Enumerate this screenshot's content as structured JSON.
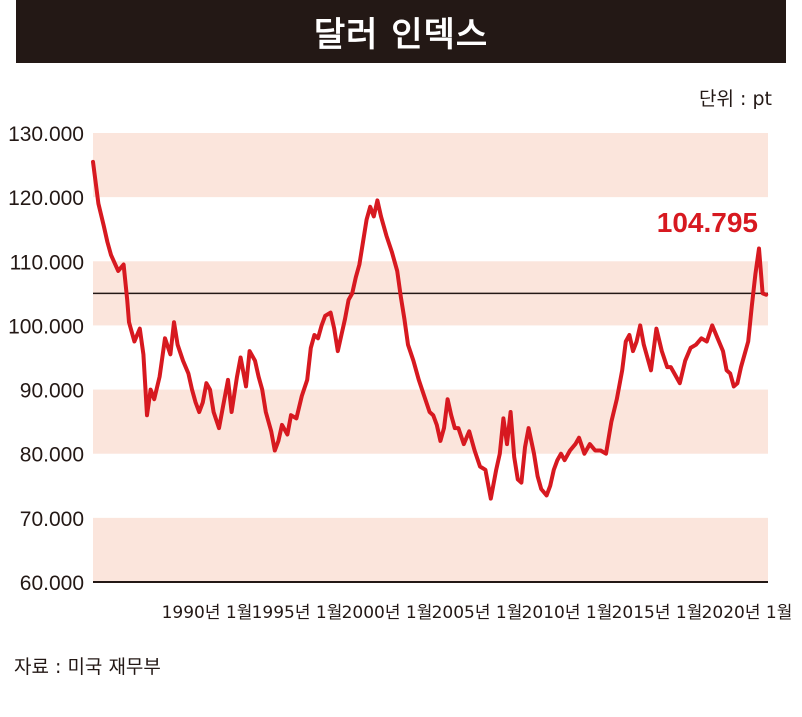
{
  "header": {
    "title": "달러 인덱스"
  },
  "unit_label": "단위 : pt",
  "source_label": "자료 : 미국 재무부",
  "colors": {
    "band": "#fbe5dc",
    "line": "#d71920",
    "axis": "#231815",
    "title_bg": "#231815"
  },
  "chart_data": {
    "type": "line",
    "title": "달러 인덱스",
    "ylim": [
      60,
      130
    ],
    "y_ticks": [
      "130.000",
      "120.000",
      "110.000",
      "100.000",
      "90.000",
      "80.000",
      "70.000",
      "60.000"
    ],
    "y_tick_values": [
      130,
      120,
      110,
      100,
      90,
      80,
      70,
      60
    ],
    "x_range": [
      1985.0,
      2022.5
    ],
    "x_ticks": [
      {
        "x": 1990,
        "label": "1990년 1월"
      },
      {
        "x": 1995,
        "label": "1995년 1월"
      },
      {
        "x": 2000,
        "label": "2000년 1월"
      },
      {
        "x": 2005,
        "label": "2005년 1월"
      },
      {
        "x": 2010,
        "label": "2010년 1월"
      },
      {
        "x": 2015,
        "label": "2015년 1월"
      },
      {
        "x": 2020,
        "label": "2020년 1월"
      }
    ],
    "reference_line": 105,
    "annotation": {
      "label": "104.795",
      "x": 2022.4,
      "y": 104.795
    },
    "grid": "alternating horizontal bands",
    "series": [
      {
        "x": [
          1985.0,
          1985.3,
          1985.6,
          1985.8,
          1986.0,
          1986.4,
          1986.7,
          1986.9,
          1987.0,
          1987.3,
          1987.6,
          1987.8,
          1988.0,
          1988.2,
          1988.4,
          1988.7,
          1989.0,
          1989.3,
          1989.5,
          1989.7,
          1990.0,
          1990.3,
          1990.5,
          1990.7,
          1990.9,
          1991.1,
          1991.3,
          1991.5,
          1991.7,
          1992.0,
          1992.2,
          1992.5,
          1992.7,
          1993.0,
          1993.2,
          1993.5,
          1993.7,
          1994.0,
          1994.2,
          1994.4,
          1994.6,
          1994.9,
          1995.1,
          1995.3,
          1995.5,
          1995.8,
          1996.0,
          1996.3,
          1996.6,
          1996.9,
          1997.1,
          1997.3,
          1997.5,
          1997.7,
          1997.9,
          1998.2,
          1998.4,
          1998.6,
          1998.8,
          1999.0,
          1999.2,
          1999.4,
          1999.6,
          1999.8,
          2000.0,
          2000.2,
          2000.4,
          2000.6,
          2000.8,
          2001.0,
          2001.3,
          2001.6,
          2001.9,
          2002.1,
          2002.3,
          2002.5,
          2002.8,
          2003.1,
          2003.4,
          2003.7,
          2003.9,
          2004.1,
          2004.3,
          2004.5,
          2004.7,
          2004.9,
          2005.1,
          2005.3,
          2005.6,
          2005.9,
          2006.2,
          2006.5,
          2006.8,
          2007.1,
          2007.4,
          2007.6,
          2007.8,
          2008.0,
          2008.2,
          2008.4,
          2008.6,
          2008.8,
          2009.0,
          2009.2,
          2009.5,
          2009.7,
          2009.9,
          2010.2,
          2010.4,
          2010.6,
          2010.8,
          2011.0,
          2011.2,
          2011.5,
          2011.8,
          2012.0,
          2012.3,
          2012.6,
          2012.9,
          2013.2,
          2013.5,
          2013.8,
          2014.1,
          2014.4,
          2014.6,
          2014.8,
          2015.0,
          2015.2,
          2015.4,
          2015.6,
          2015.8,
          2016.0,
          2016.3,
          2016.6,
          2016.9,
          2017.1,
          2017.3,
          2017.6,
          2017.9,
          2018.2,
          2018.5,
          2018.8,
          2019.1,
          2019.4,
          2019.7,
          2020.0,
          2020.2,
          2020.4,
          2020.6,
          2020.8,
          2021.0,
          2021.2,
          2021.4,
          2021.6,
          2021.8,
          2022.0,
          2022.2,
          2022.4
        ],
        "y": [
          125.5,
          119.0,
          115.5,
          113.0,
          111.0,
          108.5,
          109.5,
          104.0,
          100.5,
          97.5,
          99.5,
          95.5,
          86.0,
          90.0,
          88.5,
          92.0,
          98.0,
          95.5,
          100.5,
          97.0,
          94.5,
          92.5,
          90.0,
          88.0,
          86.5,
          88.0,
          91.0,
          90.0,
          86.5,
          84.0,
          87.0,
          91.5,
          86.5,
          92.0,
          95.0,
          90.5,
          96.0,
          94.5,
          92.0,
          90.0,
          86.5,
          83.5,
          80.5,
          82.0,
          84.5,
          83.0,
          86.0,
          85.5,
          89.0,
          91.5,
          96.5,
          98.5,
          98.0,
          100.0,
          101.5,
          102.0,
          99.5,
          96.0,
          98.5,
          101.0,
          104.0,
          105.0,
          107.5,
          109.5,
          113.0,
          116.5,
          118.5,
          117.0,
          119.5,
          117.0,
          114.0,
          111.5,
          108.5,
          104.5,
          101.0,
          97.0,
          94.5,
          91.5,
          89.0,
          86.5,
          86.0,
          84.5,
          82.0,
          84.0,
          88.5,
          86.0,
          84.0,
          84.0,
          81.5,
          83.5,
          80.5,
          78.0,
          77.5,
          73.0,
          77.5,
          80.0,
          85.5,
          81.5,
          86.5,
          79.5,
          76.0,
          75.5,
          81.0,
          84.0,
          80.0,
          76.5,
          74.5,
          73.5,
          75.0,
          77.5,
          79.0,
          80.0,
          79.0,
          80.5,
          81.5,
          82.5,
          80.0,
          81.5,
          80.5,
          80.5,
          80.0,
          85.0,
          88.5,
          93.0,
          97.5,
          98.5,
          96.0,
          97.5,
          100.0,
          97.0,
          95.0,
          93.0,
          99.5,
          96.0,
          93.5,
          93.5,
          92.5,
          91.0,
          94.5,
          96.5,
          97.0,
          98.0,
          97.5,
          100.0,
          98.0,
          96.0,
          93.0,
          92.5,
          90.5,
          91.0,
          93.5,
          95.5,
          97.5,
          103.0,
          108.0,
          112.0,
          105.0,
          104.795
        ]
      }
    ]
  }
}
